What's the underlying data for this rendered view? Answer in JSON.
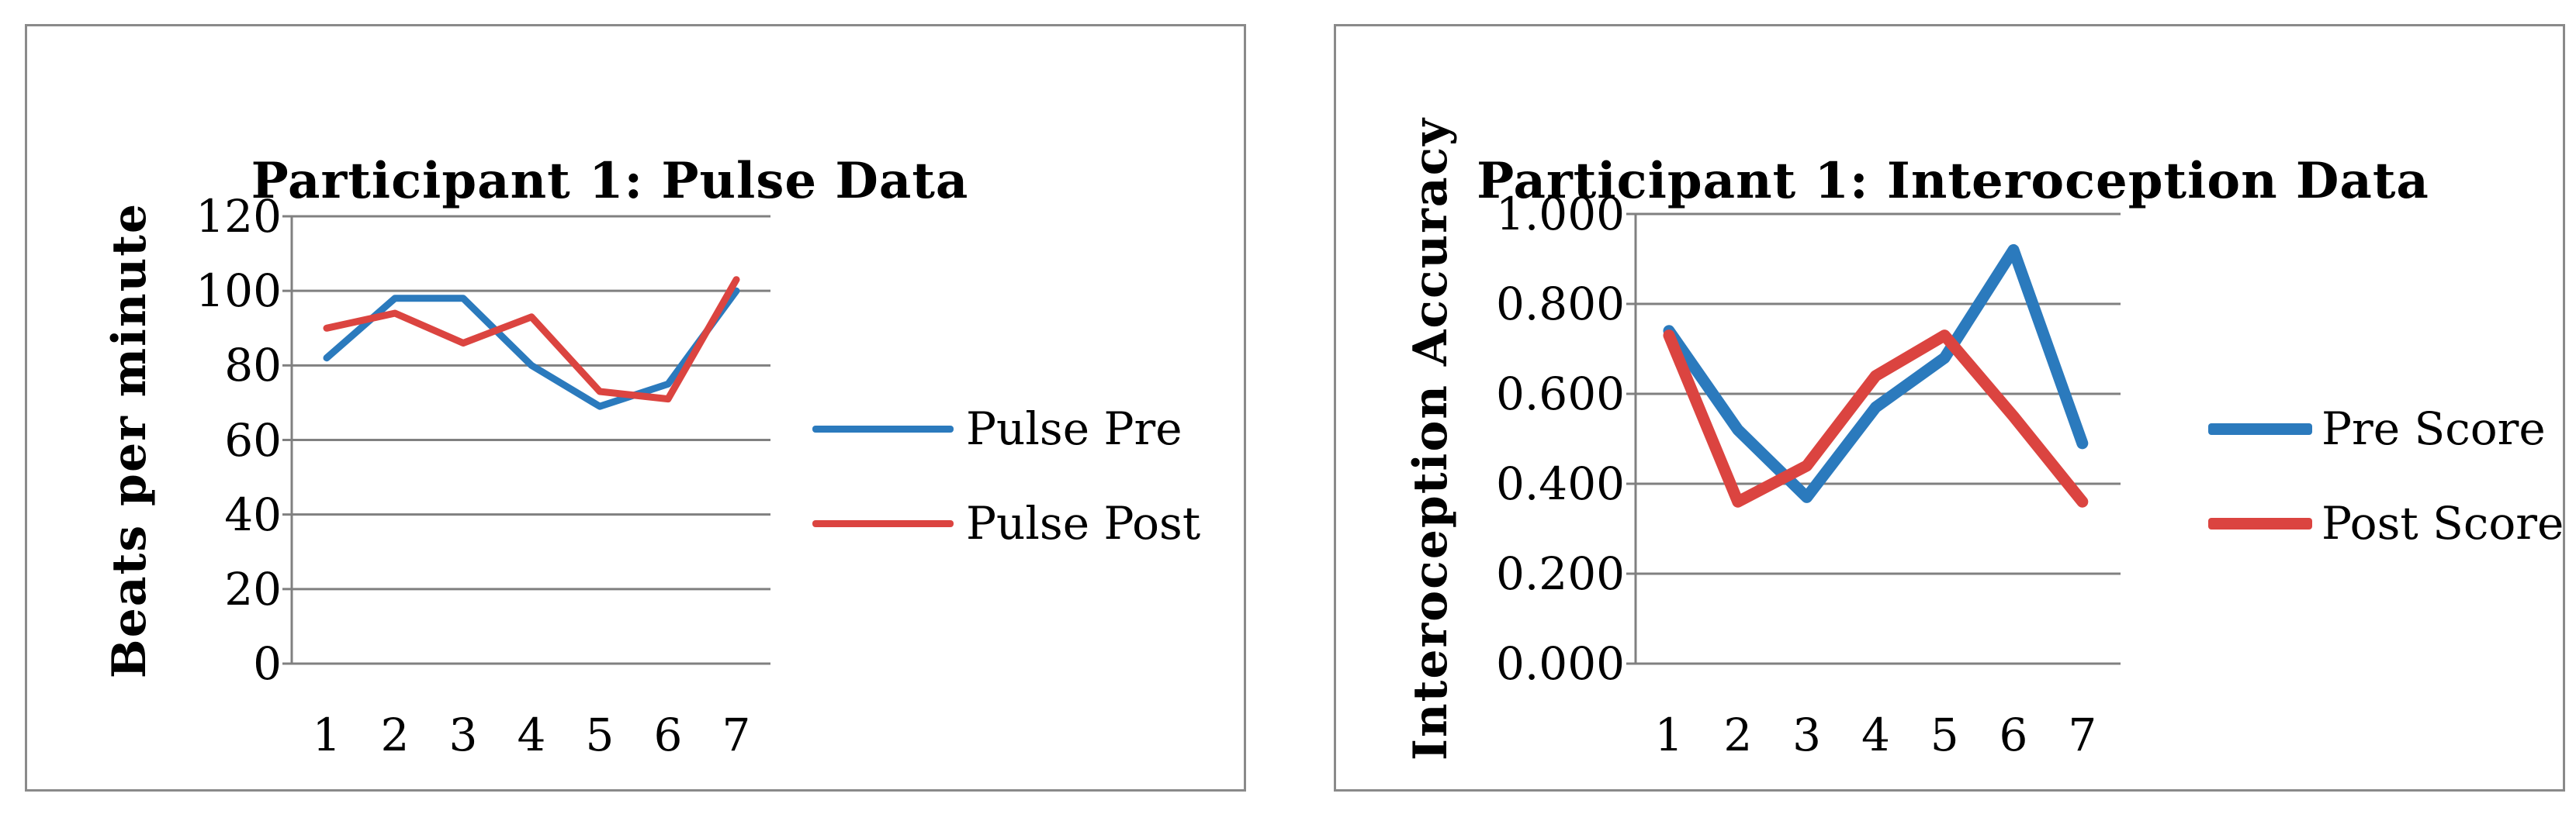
{
  "style": {
    "grid_color": "#808080",
    "border_color": "#8A8A8A",
    "background": "#FFFFFF",
    "text_color": "#000000",
    "series_blue": "#2B7ABD",
    "series_red": "#DB4440"
  },
  "chart_data": [
    {
      "type": "line",
      "title": "Participant 1: Pulse Data",
      "xlabel": "",
      "ylabel": "Beats per minute",
      "categories": [
        "1",
        "2",
        "3",
        "4",
        "5",
        "6",
        "7"
      ],
      "ylim": [
        0,
        120
      ],
      "ytick_step": 20,
      "ytick_labels": [
        "120",
        "100",
        "80",
        "60",
        "40",
        "20",
        "0"
      ],
      "grid": true,
      "legend_position": "right",
      "series": [
        {
          "name": "Pulse Pre",
          "color": "#2B7ABD",
          "values": [
            82,
            98,
            98,
            80,
            69,
            75,
            100
          ]
        },
        {
          "name": "Pulse Post",
          "color": "#DB4440",
          "values": [
            90,
            94,
            86,
            93,
            73,
            71,
            103
          ]
        }
      ]
    },
    {
      "type": "line",
      "title": "Participant 1: Interoception Data",
      "xlabel": "",
      "ylabel": "Interoception Accuracy",
      "categories": [
        "1",
        "2",
        "3",
        "4",
        "5",
        "6",
        "7"
      ],
      "ylim": [
        0,
        1
      ],
      "ytick_step": 0.2,
      "ytick_labels": [
        "1.000",
        "0.800",
        "0.600",
        "0.400",
        "0.200",
        "0.000"
      ],
      "grid": true,
      "legend_position": "right",
      "series": [
        {
          "name": "Pre Score",
          "color": "#2B7ABD",
          "values": [
            0.74,
            0.52,
            0.37,
            0.57,
            0.68,
            0.92,
            0.49
          ]
        },
        {
          "name": "Post Score",
          "color": "#DB4440",
          "values": [
            0.73,
            0.36,
            0.44,
            0.64,
            0.73,
            0.55,
            0.36
          ]
        }
      ]
    }
  ]
}
